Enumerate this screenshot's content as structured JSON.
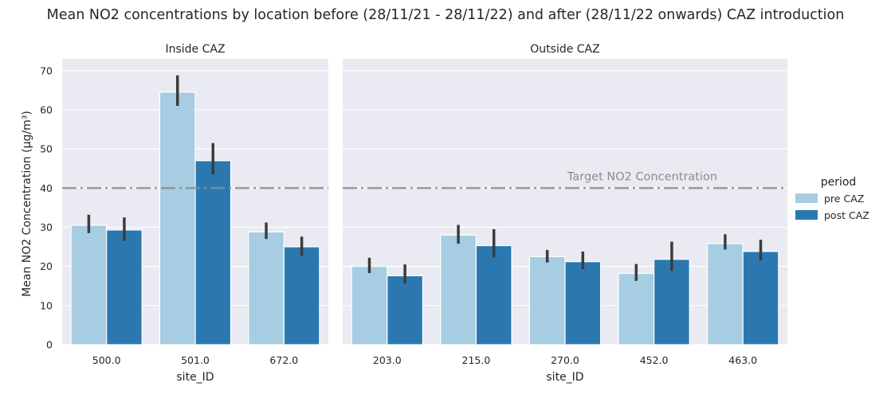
{
  "title": "Mean NO2 concentrations by location before (28/11/21 - 28/11/22) and after (28/11/22 onwards) CAZ introduction",
  "chart_data": {
    "type": "bar",
    "ylabel": "Mean NO2 Concentration (µg/m³)",
    "xlabel": "site_ID",
    "ylim": [
      0,
      73
    ],
    "yticks": [
      0,
      10,
      20,
      30,
      40,
      50,
      60,
      70
    ],
    "grid": true,
    "target": {
      "value": 40,
      "label": "Target NO2 Concentration"
    },
    "legend": {
      "title": "period",
      "position": "right",
      "entries": [
        {
          "name": "pre CAZ",
          "color": "#a6cde2"
        },
        {
          "name": "post CAZ",
          "color": "#2b78b0"
        }
      ]
    },
    "panels": [
      {
        "title": "Inside CAZ",
        "categories": [
          "500.0",
          "501.0",
          "672.0"
        ],
        "series": [
          {
            "name": "pre CAZ",
            "values": [
              30.5,
              64.5,
              28.8
            ],
            "err_low": [
              28.5,
              61.0,
              27.0
            ],
            "err_high": [
              33.2,
              68.8,
              31.2
            ]
          },
          {
            "name": "post CAZ",
            "values": [
              29.3,
              47.0,
              25.0
            ],
            "err_low": [
              26.5,
              43.5,
              22.7
            ],
            "err_high": [
              32.5,
              51.5,
              27.6
            ]
          }
        ]
      },
      {
        "title": "Outside CAZ",
        "categories": [
          "203.0",
          "215.0",
          "270.0",
          "452.0",
          "463.0"
        ],
        "series": [
          {
            "name": "pre CAZ",
            "values": [
              20.0,
              28.0,
              22.5,
              18.2,
              25.8
            ],
            "err_low": [
              18.3,
              25.8,
              21.0,
              16.3,
              24.3
            ],
            "err_high": [
              22.2,
              30.6,
              24.2,
              20.6,
              28.2
            ]
          },
          {
            "name": "post CAZ",
            "values": [
              17.6,
              25.3,
              21.2,
              21.8,
              23.8
            ],
            "err_low": [
              15.6,
              22.3,
              19.3,
              18.8,
              21.5
            ],
            "err_high": [
              20.5,
              29.5,
              23.8,
              26.3,
              26.8
            ]
          }
        ]
      }
    ]
  }
}
